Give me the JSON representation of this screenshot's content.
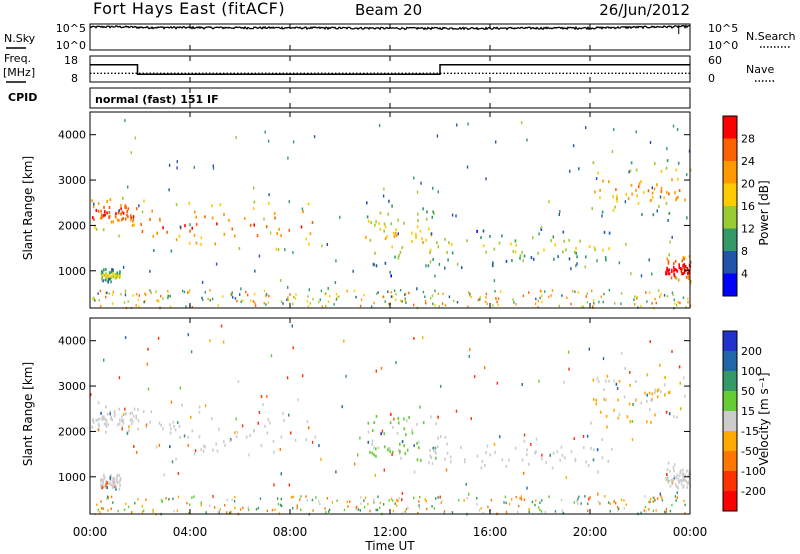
{
  "header": {
    "station": "Fort Hays East (fitACF)",
    "beam": "Beam 20",
    "date": "26/Jun/2012"
  },
  "side_labels": {
    "nsky": "N.Sky",
    "nsearch": "N.Search",
    "freq": "Freq.",
    "freq_unit": "[MHz]",
    "nave": "Nave",
    "cpid": "CPID",
    "cpid_value": "normal (fast) 151 IF"
  },
  "noise_axis": {
    "left_ticks": [
      "10^5",
      "10^0"
    ],
    "right_ticks": [
      "10^5",
      "10^0"
    ]
  },
  "freq_axis": {
    "left_ticks": [
      "18",
      "8"
    ],
    "right_ticks": [
      "60",
      "0"
    ]
  },
  "range_axis": {
    "label": "Slant Range [km]",
    "ticks": [
      "4000",
      "3000",
      "2000",
      "1000"
    ],
    "ylim": [
      180,
      4500
    ]
  },
  "time_axis": {
    "label": "Time UT",
    "ticks": [
      "00:00",
      "04:00",
      "08:00",
      "12:00",
      "16:00",
      "20:00",
      "00:00"
    ],
    "xlim_hours": [
      0,
      24
    ]
  },
  "power_scale": {
    "label": "Power [dB]",
    "ticks": [
      "28",
      "24",
      "20",
      "16",
      "12",
      "8",
      "4"
    ],
    "colors": [
      "#ff0000",
      "#ff6000",
      "#ff9900",
      "#ffcc00",
      "#99cc33",
      "#339966",
      "#2255aa",
      "#0000ff"
    ]
  },
  "velocity_scale": {
    "label": "Velocity [m s⁻¹]",
    "ticks": [
      "200",
      "100",
      "50",
      "15",
      "-15",
      "-50",
      "-100",
      "-200"
    ],
    "colors": [
      "#2233cc",
      "#2266aa",
      "#339966",
      "#66cc33",
      "#cccccc",
      "#ffaa00",
      "#ff7700",
      "#ff3300",
      "#ff0000"
    ]
  },
  "chart_data": [
    {
      "type": "line",
      "title": "Fort Hays East (fitACF)",
      "xlabel": "Time UT",
      "xlim": [
        0,
        24
      ],
      "series": [
        {
          "name": "N.Sky",
          "x": [
            0,
            1,
            2,
            4,
            8,
            12,
            16,
            20,
            23.5,
            24
          ],
          "values": [
            25000,
            30000,
            22000,
            20000,
            18000,
            15000,
            15000,
            17000,
            30000,
            35000
          ]
        },
        {
          "name": "Freq.",
          "x": [
            0,
            1.9,
            1.9,
            14.0,
            14.0,
            24
          ],
          "values": [
            14.6,
            14.6,
            11.0,
            11.0,
            14.6,
            14.6
          ]
        },
        {
          "name": "Nave",
          "x": [
            0,
            1.9,
            1.9,
            14.0,
            14.0,
            24
          ],
          "values": [
            20,
            20,
            20,
            20,
            20,
            20
          ]
        }
      ]
    },
    {
      "type": "scatter",
      "panel": "power",
      "ylabel": "Slant Range [km]",
      "xlabel": "Time UT",
      "xlim": [
        0,
        24
      ],
      "ylim": [
        180,
        4500
      ],
      "regions": [
        {
          "t0": 0.0,
          "t1": 1.9,
          "r0": 1900,
          "r1": 2700,
          "mean_power_db": 20
        },
        {
          "t0": 0.4,
          "t1": 1.2,
          "r0": 750,
          "r1": 1100,
          "mean_power_db": 8
        },
        {
          "t0": 1.9,
          "t1": 9.0,
          "r0": 1400,
          "r1": 2700,
          "mean_power_db": 18
        },
        {
          "t0": 11.0,
          "t1": 14.0,
          "r0": 900,
          "r1": 2700,
          "mean_power_db": 10
        },
        {
          "t0": 13.5,
          "t1": 21.0,
          "r0": 1100,
          "r1": 2000,
          "mean_power_db": 8
        },
        {
          "t0": 20.0,
          "t1": 24.0,
          "r0": 2100,
          "r1": 3600,
          "mean_power_db": 14
        },
        {
          "t0": 23.0,
          "t1": 24.0,
          "r0": 700,
          "r1": 1400,
          "mean_power_db": 24
        }
      ]
    },
    {
      "type": "scatter",
      "panel": "velocity",
      "ylabel": "Slant Range [km]",
      "xlabel": "Time UT",
      "xlim": [
        0,
        24
      ],
      "ylim": [
        180,
        4500
      ],
      "regions": [
        {
          "t0": 0.0,
          "t1": 1.9,
          "r0": 1900,
          "r1": 2700,
          "mean_velocity": 0
        },
        {
          "t0": 0.4,
          "t1": 1.2,
          "r0": 750,
          "r1": 1100,
          "mean_velocity": 0
        },
        {
          "t0": 1.9,
          "t1": 9.0,
          "r0": 1400,
          "r1": 2700,
          "mean_velocity": 0
        },
        {
          "t0": 11.0,
          "t1": 14.0,
          "r0": 900,
          "r1": 2700,
          "mean_velocity": 20
        },
        {
          "t0": 13.5,
          "t1": 21.0,
          "r0": 1100,
          "r1": 2000,
          "mean_velocity": 0
        },
        {
          "t0": 20.0,
          "t1": 24.0,
          "r0": 2100,
          "r1": 3600,
          "mean_velocity": -20
        },
        {
          "t0": 23.0,
          "t1": 24.0,
          "r0": 700,
          "r1": 1400,
          "mean_velocity": 0
        }
      ]
    }
  ]
}
